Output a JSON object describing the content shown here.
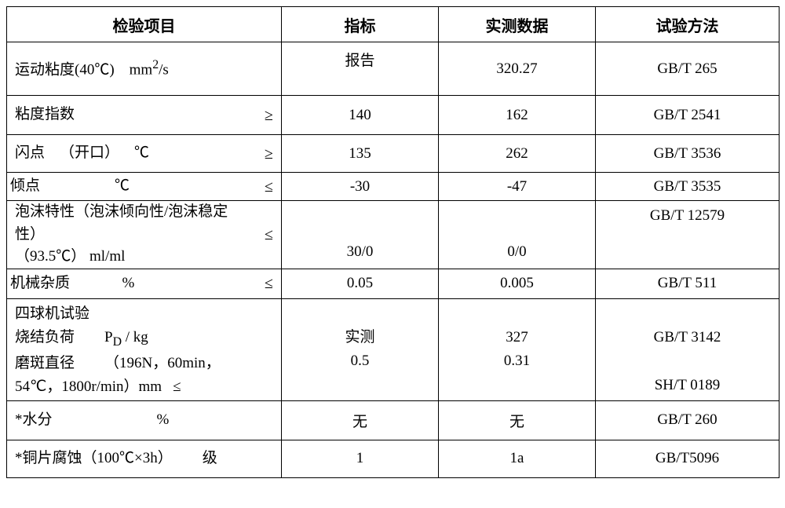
{
  "header": {
    "item": "检验项目",
    "target": "指标",
    "actual": "实测数据",
    "method": "试验方法"
  },
  "rows": [
    {
      "item_html": "运动粘度(40℃)&nbsp;&nbsp;&nbsp;&nbsp;mm<sup>2</sup>/s",
      "op": "",
      "target": "报告",
      "actual": "320.27",
      "method": "GB/T 265",
      "h": "r1",
      "target_valign": "top"
    },
    {
      "item_html": "粘度指数",
      "op": "≥",
      "target": "140",
      "actual": "162",
      "method": "GB/T 2541",
      "h": "r2"
    },
    {
      "item_html": "闪点&nbsp;&nbsp;&nbsp;&nbsp;（开口）&nbsp;&nbsp;&nbsp;&nbsp;℃",
      "op": "≥",
      "target": "135",
      "actual": "262",
      "method": "GB/T 3536",
      "h": "r3"
    },
    {
      "item_html": "倾点&nbsp;&nbsp;&nbsp;&nbsp;&nbsp;&nbsp;&nbsp;&nbsp;&nbsp;&nbsp;&nbsp;&nbsp;&nbsp;&nbsp;&nbsp;&nbsp;&nbsp;&nbsp;&nbsp;&nbsp;℃",
      "op": "≤",
      "target": "-30",
      "actual": "-47",
      "method": "GB/T 3535",
      "h": "r4",
      "nopad": true
    },
    {
      "item_html": "泡沫特性（泡沫倾向性/泡沫稳定性）<br>（93.5℃）&nbsp;ml/ml",
      "op": "≤",
      "target": "30/0",
      "actual": "0/0",
      "method": "GB/T 12579",
      "h": "r5",
      "method_valign": "top",
      "target_valign": "bottom",
      "actual_valign": "bottom"
    },
    {
      "item_html": "机械杂质&nbsp;&nbsp;&nbsp;&nbsp;&nbsp;&nbsp;&nbsp;&nbsp;&nbsp;&nbsp;&nbsp;&nbsp;&nbsp;&nbsp;%",
      "op": "≤",
      "target": "0.05",
      "actual": "0.005",
      "method": "GB/T 511",
      "h": "r6",
      "nopad": true
    },
    {
      "item_lines": [
        "四球机试验",
        "烧结负荷&nbsp;&nbsp;&nbsp;&nbsp;&nbsp;&nbsp;&nbsp;&nbsp;P<sub>D</sub>&nbsp;/&nbsp;kg",
        "磨斑直径&nbsp;&nbsp;&nbsp;&nbsp;&nbsp;&nbsp;&nbsp;&nbsp;（196N，60min，",
        "54℃，1800r/min）mm&nbsp;&nbsp;&nbsp;≤"
      ],
      "target_lines": [
        "",
        "实测",
        "0.5",
        ""
      ],
      "actual_lines": [
        "",
        "327",
        "0.31",
        ""
      ],
      "method_lines": [
        "",
        "GB/T 3142",
        "",
        "SH/T 0189"
      ],
      "h": "r7",
      "multi": true
    },
    {
      "item_html": "*水分&nbsp;&nbsp;&nbsp;&nbsp;&nbsp;&nbsp;&nbsp;&nbsp;&nbsp;&nbsp;&nbsp;&nbsp;&nbsp;&nbsp;&nbsp;&nbsp;&nbsp;&nbsp;&nbsp;&nbsp;&nbsp;&nbsp;&nbsp;&nbsp;&nbsp;&nbsp;&nbsp;&nbsp;%",
      "op": "",
      "target": "无",
      "actual": "无",
      "method": "GB/T 260",
      "h": "r8"
    },
    {
      "item_html": "*铜片腐蚀（100℃×3h）&nbsp;&nbsp;&nbsp;&nbsp;&nbsp;&nbsp;&nbsp;&nbsp;级",
      "op": "",
      "target": "1",
      "actual": "1a",
      "method": "GB/T5096",
      "h": "r9"
    }
  ]
}
